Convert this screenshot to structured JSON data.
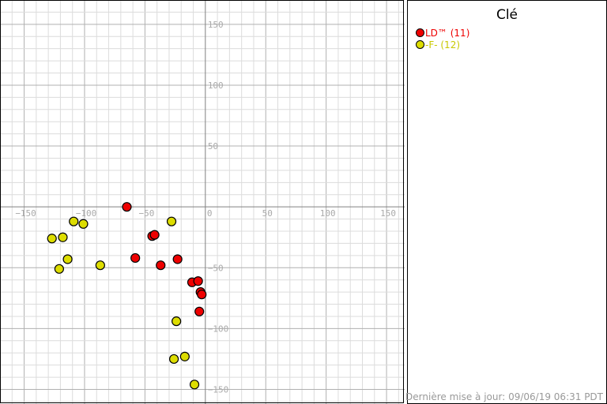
{
  "legend": {
    "title": "Clé",
    "items": [
      {
        "label": "LD™ (11)",
        "color": "#ee0000"
      },
      {
        "label": "-F- (12)",
        "color": "#dddd00"
      }
    ]
  },
  "footer": {
    "updated": "Dernière mise à jour: 09/06/19 06:31 PDT"
  },
  "chart_data": {
    "type": "scatter",
    "xlim": [
      -170,
      165
    ],
    "ylim": [
      -162,
      170
    ],
    "x_ticks": [
      -150,
      -100,
      -50,
      0,
      50,
      100,
      150
    ],
    "x_tick_labels": [
      "−150",
      "−100",
      "−50",
      "0",
      "50",
      "100",
      "150"
    ],
    "y_ticks": [
      150,
      100,
      50,
      -50,
      -100,
      -150
    ],
    "y_tick_labels": [
      "150",
      "100",
      "50",
      "−50",
      "−100",
      "−150"
    ],
    "grid": true,
    "minor_step": 10,
    "major_step": 50,
    "series": [
      {
        "name": "LD™ (11)",
        "color": "#ee0000",
        "points": [
          [
            -65,
            0
          ],
          [
            -44,
            -24
          ],
          [
            -42,
            -23
          ],
          [
            -58,
            -42
          ],
          [
            -37,
            -48
          ],
          [
            -11,
            -62
          ],
          [
            -6,
            -61
          ],
          [
            -4,
            -70
          ],
          [
            -3,
            -72
          ],
          [
            -5,
            -86
          ],
          [
            -23,
            -43
          ]
        ]
      },
      {
        "name": "-F- (12)",
        "color": "#dddd00",
        "points": [
          [
            -109,
            -12
          ],
          [
            -101,
            -14
          ],
          [
            -118,
            -25
          ],
          [
            -127,
            -26
          ],
          [
            -114,
            -43
          ],
          [
            -121,
            -51
          ],
          [
            -87,
            -48
          ],
          [
            -28,
            -12
          ],
          [
            -24,
            -94
          ],
          [
            -17,
            -123
          ],
          [
            -26,
            -125
          ],
          [
            -9,
            -146
          ]
        ]
      }
    ]
  }
}
